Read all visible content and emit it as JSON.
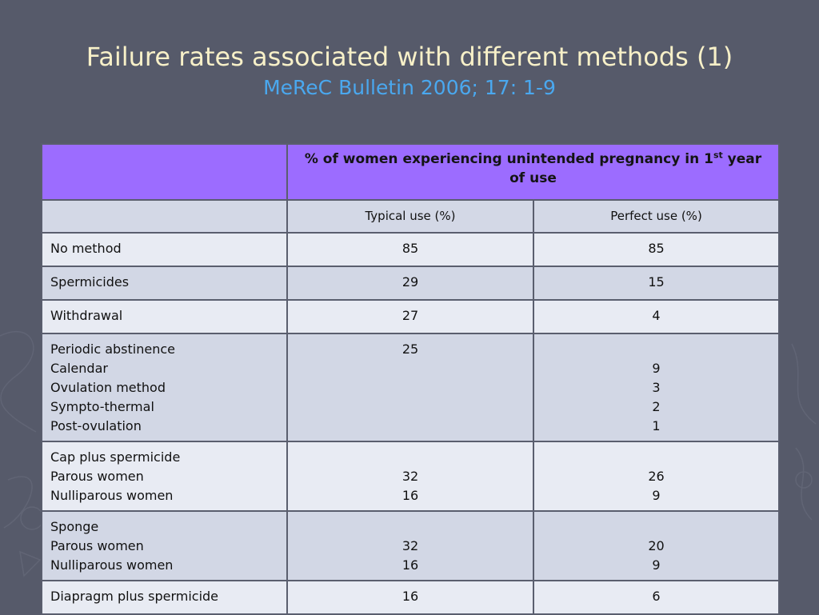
{
  "slide": {
    "title": "Failure rates associated with different methods (1)",
    "subtitle": "MeReC Bulletin 2006; 17: 1-9"
  },
  "table": {
    "header_main": "% of women experiencing unintended pregnancy in 1",
    "header_sup": "st",
    "header_end": " year of use",
    "col_typical": "Typical use (%)",
    "col_perfect": "Perfect use (%)",
    "rows": [
      {
        "label": "No method",
        "typical": "85",
        "perfect": "85"
      },
      {
        "label": "Spermicides",
        "typical": "29",
        "perfect": "15"
      },
      {
        "label": "Withdrawal",
        "typical": "27",
        "perfect": "4"
      },
      {
        "label": "Periodic abstinence\nCalendar\nOvulation method\nSympto-thermal\nPost-ovulation",
        "typical": "25",
        "perfect": "\n9\n3\n2\n1"
      },
      {
        "label": "Cap plus spermicide\nParous women\nNulliparous women",
        "typical": "\n32\n16",
        "perfect": "\n26\n9"
      },
      {
        "label": "Sponge\nParous women\nNulliparous women",
        "typical": "\n32\n16",
        "perfect": "\n20\n9"
      },
      {
        "label": "Diapragm plus spermicide",
        "typical": "16",
        "perfect": "6"
      }
    ]
  }
}
